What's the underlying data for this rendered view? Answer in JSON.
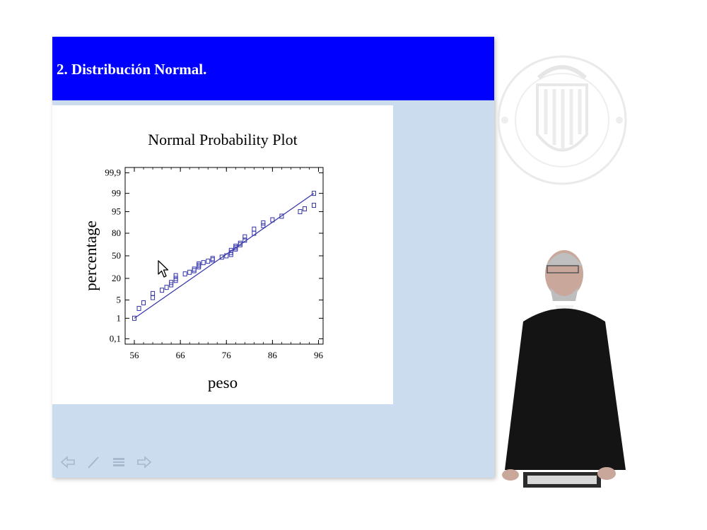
{
  "slide": {
    "title": "2. Distribución Normal.",
    "background_color": "#cbdcee",
    "header_color": "#0000ff"
  },
  "chart_data": {
    "type": "scatter",
    "title": "Normal Probability Plot",
    "xlabel": "peso",
    "ylabel": "percentage",
    "xlim": [
      54,
      97
    ],
    "x_ticks": [
      "56",
      "66",
      "76",
      "86",
      "96"
    ],
    "y_ticks": [
      "0,1",
      "1",
      "5",
      "20",
      "50",
      "80",
      "95",
      "99",
      "99,9"
    ],
    "y_scale": "normal-probability",
    "marker": "open-square",
    "color": "#3333aa",
    "fit_line": {
      "x": [
        56,
        95
      ],
      "y": [
        1,
        99
      ]
    },
    "points": {
      "x": [
        56,
        57,
        58,
        60,
        60,
        62,
        63,
        64,
        64,
        65,
        65,
        65,
        67,
        68,
        69,
        69,
        70,
        70,
        70,
        71,
        72,
        73,
        73,
        75,
        76,
        77,
        77,
        77,
        78,
        78,
        78,
        79,
        79,
        80,
        80,
        82,
        82,
        84,
        84,
        86,
        88,
        92,
        93,
        95,
        95
      ],
      "y": [
        1,
        2.5,
        4,
        6,
        8,
        10,
        12,
        14,
        16,
        18,
        20,
        23,
        25,
        27,
        29,
        31,
        34,
        36,
        38,
        40,
        42,
        44,
        46,
        48,
        50,
        52,
        55,
        58,
        60,
        62,
        64,
        66,
        68,
        72,
        76,
        80,
        84,
        87,
        89,
        91,
        93,
        95,
        96,
        97,
        99
      ]
    }
  },
  "nav": {
    "icons": [
      "left-arrow-icon",
      "pencil-icon",
      "menu-icon",
      "right-arrow-icon"
    ]
  }
}
